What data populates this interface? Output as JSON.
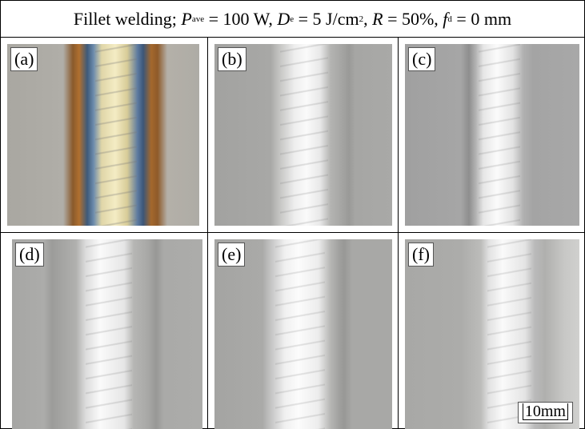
{
  "header": {
    "parts": [
      "Fillet welding; ",
      "P",
      "ave",
      " = 100 W, ",
      "D",
      "e",
      " = 5 J/cm",
      "2",
      ", ",
      "R",
      " = 50%, ",
      "f",
      "d",
      " = 0 mm"
    ]
  },
  "panels": [
    {
      "label": "(a)"
    },
    {
      "label": "(b)"
    },
    {
      "label": "(c)"
    },
    {
      "label": "(d)"
    },
    {
      "label": "(e)"
    },
    {
      "label": "(f)"
    }
  ],
  "scale_bar": "10mm"
}
